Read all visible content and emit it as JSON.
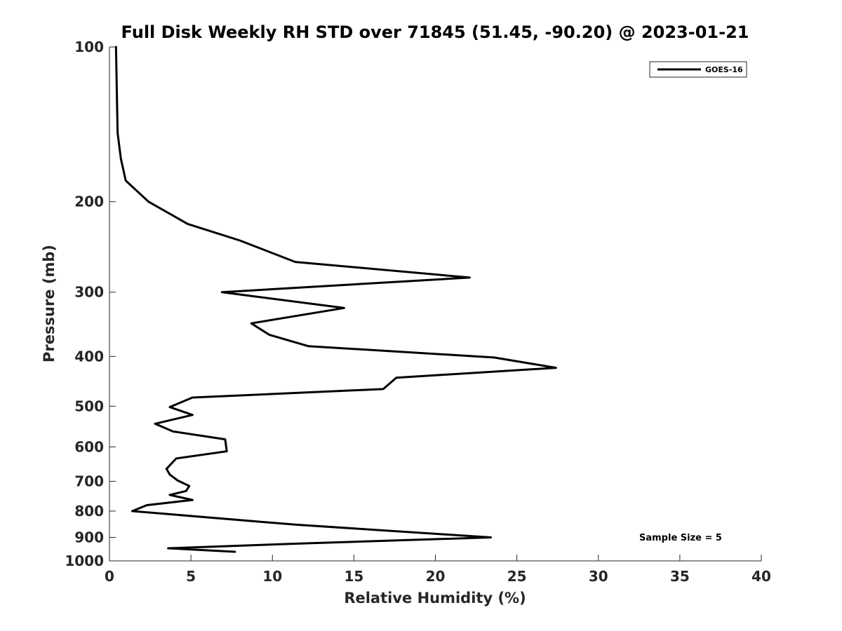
{
  "chart_data": {
    "type": "line",
    "title": "Full Disk Weekly RH STD over 71845 (51.45, -90.20) @ 2023-01-21",
    "xlabel": "Relative Humidity (%)",
    "ylabel": "Pressure (mb)",
    "xlim": [
      0,
      40
    ],
    "ylim": [
      100,
      1000
    ],
    "yscale": "log",
    "y_inverted": true,
    "x_ticks": [
      "0",
      "5",
      "10",
      "15",
      "20",
      "25",
      "30",
      "35",
      "40"
    ],
    "y_ticks": [
      "100",
      "200",
      "300",
      "400",
      "500",
      "600",
      "700",
      "800",
      "900",
      "1000"
    ],
    "grid": false,
    "legend": {
      "position": "top-right",
      "entries": [
        "GOES-16"
      ]
    },
    "annotation": "Sample Size = 5",
    "series": [
      {
        "name": "GOES-16",
        "color": "#000000",
        "x": [
          0.4,
          0.5,
          0.7,
          1.0,
          2.4,
          4.8,
          8.0,
          11.4,
          22.1,
          6.9,
          14.4,
          8.7,
          9.8,
          12.2,
          23.6,
          27.4,
          17.6,
          16.8,
          5.1,
          3.7,
          5.1,
          2.8,
          3.9,
          7.1,
          7.2,
          4.1,
          3.5,
          3.7,
          4.2,
          4.9,
          4.7,
          3.7,
          5.1,
          2.3,
          1.4,
          11.4,
          23.4,
          11.7,
          3.6,
          7.7
        ],
        "y": [
          100,
          147,
          165,
          182,
          200,
          221,
          238,
          262,
          281,
          300,
          322,
          345,
          363,
          382,
          402,
          421,
          440,
          463,
          481,
          502,
          520,
          541,
          560,
          580,
          612,
          632,
          662,
          679,
          698,
          715,
          731,
          744,
          761,
          779,
          800,
          850,
          900,
          925,
          945,
          960
        ]
      }
    ]
  }
}
